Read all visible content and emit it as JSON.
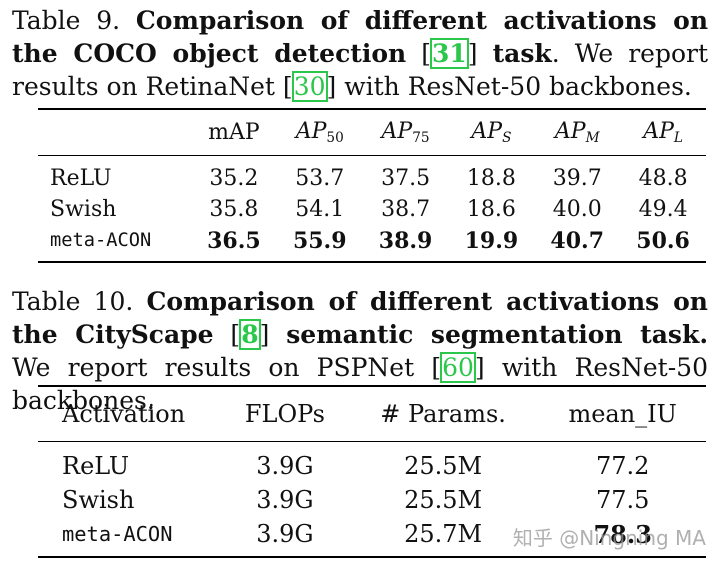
{
  "table9": {
    "caption": {
      "label": "Table 9.",
      "title_a": "Comparison of different activations on the COCO object detection",
      "cite": "31",
      "title_b": "task",
      "rest_a": ". We report results on RetinaNet",
      "cite2": "30",
      "rest_b": "with ResNet-50 backbones."
    },
    "headers": {
      "c0": "",
      "c1": "mAP",
      "c2": {
        "main": "AP",
        "sub": "50"
      },
      "c3": {
        "main": "AP",
        "sub": "75"
      },
      "c4": {
        "main": "AP",
        "sub": "S"
      },
      "c5": {
        "main": "AP",
        "sub": "M"
      },
      "c6": {
        "main": "AP",
        "sub": "L"
      }
    },
    "rows": [
      {
        "name": "ReLU",
        "mAP": "35.2",
        "ap50": "53.7",
        "ap75": "37.5",
        "aps": "18.8",
        "apm": "39.7",
        "apl": "48.8"
      },
      {
        "name": "Swish",
        "mAP": "35.8",
        "ap50": "54.1",
        "ap75": "38.7",
        "aps": "18.6",
        "apm": "40.0",
        "apl": "49.4"
      },
      {
        "name": "meta-ACON",
        "mAP": "36.5",
        "ap50": "55.9",
        "ap75": "38.9",
        "aps": "19.9",
        "apm": "40.7",
        "apl": "50.6"
      }
    ]
  },
  "table10": {
    "caption": {
      "label": "Table 10.",
      "title_a": "Comparison of different activations on the CityScape",
      "cite": "8",
      "title_b": "semantic segmentation task.",
      "rest_a": "We report results on PSPNet",
      "cite2": "60",
      "rest_b": "with ResNet-50 backbones."
    },
    "headers": {
      "c0": "Activation",
      "c1": "FLOPs",
      "c2": "# Params.",
      "c3": "mean_IU"
    },
    "rows": [
      {
        "name": "ReLU",
        "flops": "3.9G",
        "params": "25.5M",
        "miou": "77.2"
      },
      {
        "name": "Swish",
        "flops": "3.9G",
        "params": "25.5M",
        "miou": "77.5"
      },
      {
        "name": "meta-ACON",
        "flops": "3.9G",
        "params": "25.7M",
        "miou": "78.3"
      }
    ]
  },
  "watermark": "知乎 @Ningning MA",
  "colors": {
    "citation": "#2bc74a",
    "text": "#111111"
  }
}
